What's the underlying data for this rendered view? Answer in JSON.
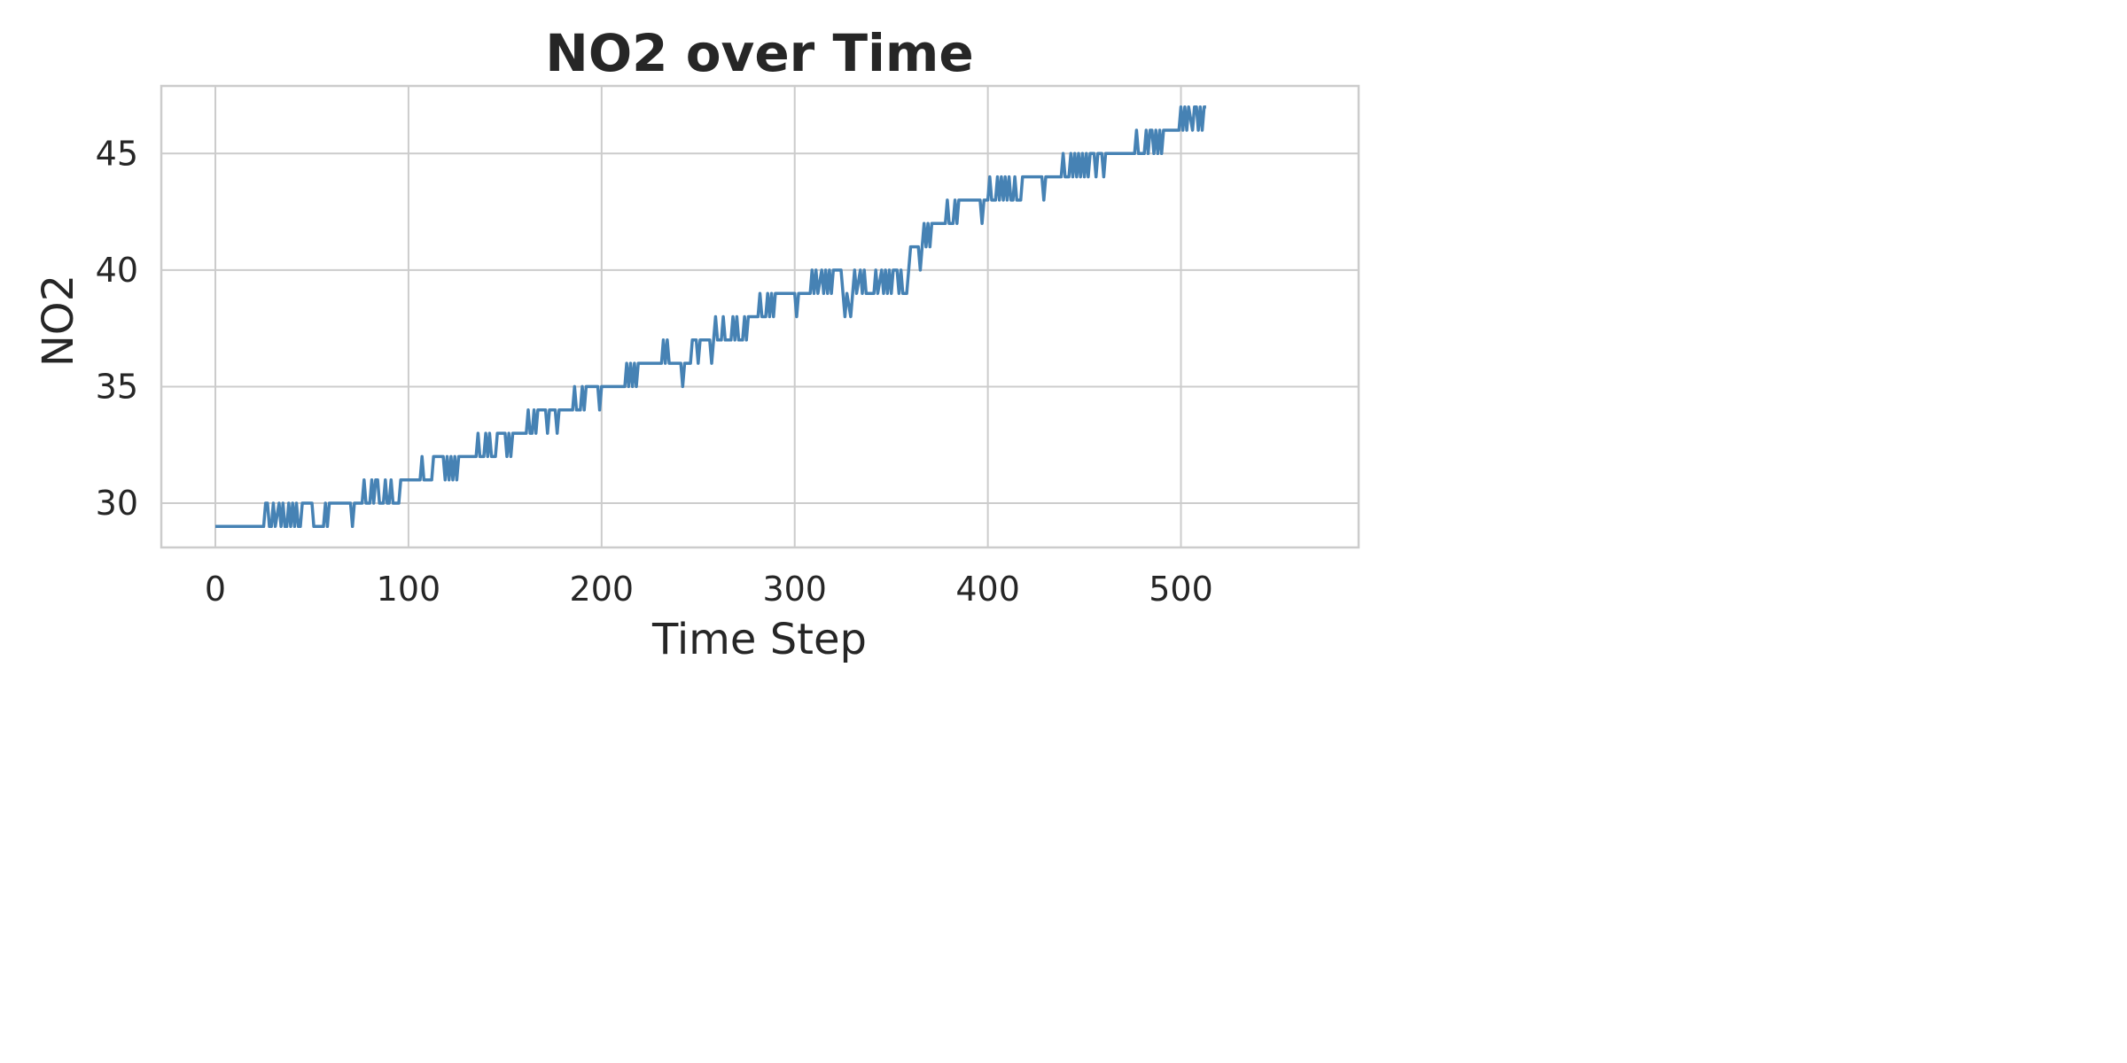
{
  "chart_data": {
    "type": "line",
    "title": "NO2 over Time",
    "xlabel": "Time Step",
    "ylabel": "NO2",
    "xlim": [
      -28,
      592
    ],
    "ylim": [
      28.1,
      47.9
    ],
    "xticks": [
      0,
      100,
      200,
      300,
      400,
      500
    ],
    "yticks": [
      30,
      35,
      40,
      45
    ],
    "grid": true,
    "line_color": "#4682b4",
    "series": [
      {
        "points": [
          [
            0,
            29
          ],
          [
            25,
            29
          ],
          [
            26,
            30
          ],
          [
            27,
            30
          ],
          [
            28,
            29
          ],
          [
            29,
            29
          ],
          [
            30,
            30
          ],
          [
            31,
            29
          ],
          [
            33,
            30
          ],
          [
            34,
            29
          ],
          [
            35,
            30
          ],
          [
            36,
            29
          ],
          [
            37,
            29
          ],
          [
            38,
            30
          ],
          [
            39,
            29
          ],
          [
            40,
            30
          ],
          [
            41,
            29
          ],
          [
            42,
            30
          ],
          [
            43,
            29
          ],
          [
            44,
            29
          ],
          [
            45,
            30
          ],
          [
            50,
            30
          ],
          [
            51,
            29
          ],
          [
            56,
            29
          ],
          [
            57,
            30
          ],
          [
            58,
            29
          ],
          [
            59,
            30
          ],
          [
            70,
            30
          ],
          [
            71,
            29
          ],
          [
            72,
            30
          ],
          [
            76,
            30
          ],
          [
            77,
            31
          ],
          [
            78,
            30
          ],
          [
            80,
            30
          ],
          [
            81,
            31
          ],
          [
            82,
            30
          ],
          [
            83,
            31
          ],
          [
            84,
            31
          ],
          [
            85,
            30
          ],
          [
            87,
            30
          ],
          [
            88,
            31
          ],
          [
            89,
            30
          ],
          [
            90,
            30
          ],
          [
            91,
            31
          ],
          [
            92,
            30
          ],
          [
            95,
            30
          ],
          [
            96,
            31
          ],
          [
            106,
            31
          ],
          [
            107,
            32
          ],
          [
            108,
            31
          ],
          [
            112,
            31
          ],
          [
            113,
            32
          ],
          [
            118,
            32
          ],
          [
            119,
            31
          ],
          [
            120,
            32
          ],
          [
            121,
            31
          ],
          [
            122,
            32
          ],
          [
            123,
            31
          ],
          [
            124,
            32
          ],
          [
            125,
            31
          ],
          [
            126,
            32
          ],
          [
            135,
            32
          ],
          [
            136,
            33
          ],
          [
            137,
            32
          ],
          [
            139,
            32
          ],
          [
            140,
            33
          ],
          [
            141,
            32
          ],
          [
            142,
            33
          ],
          [
            143,
            32
          ],
          [
            145,
            32
          ],
          [
            146,
            33
          ],
          [
            150,
            33
          ],
          [
            151,
            32
          ],
          [
            152,
            33
          ],
          [
            153,
            32
          ],
          [
            154,
            33
          ],
          [
            161,
            33
          ],
          [
            162,
            34
          ],
          [
            163,
            33
          ],
          [
            164,
            33
          ],
          [
            165,
            34
          ],
          [
            166,
            33
          ],
          [
            167,
            34
          ],
          [
            171,
            34
          ],
          [
            172,
            33
          ],
          [
            173,
            34
          ],
          [
            176,
            34
          ],
          [
            177,
            33
          ],
          [
            178,
            34
          ],
          [
            185,
            34
          ],
          [
            186,
            35
          ],
          [
            187,
            34
          ],
          [
            189,
            34
          ],
          [
            190,
            35
          ],
          [
            191,
            34
          ],
          [
            192,
            35
          ],
          [
            198,
            35
          ],
          [
            199,
            34
          ],
          [
            200,
            35
          ],
          [
            212,
            35
          ],
          [
            213,
            36
          ],
          [
            214,
            35
          ],
          [
            215,
            36
          ],
          [
            216,
            35
          ],
          [
            217,
            36
          ],
          [
            218,
            35
          ],
          [
            219,
            36
          ],
          [
            231,
            36
          ],
          [
            232,
            37
          ],
          [
            233,
            36
          ],
          [
            234,
            37
          ],
          [
            235,
            36
          ],
          [
            241,
            36
          ],
          [
            242,
            35
          ],
          [
            243,
            36
          ],
          [
            246,
            36
          ],
          [
            247,
            37
          ],
          [
            249,
            37
          ],
          [
            250,
            36
          ],
          [
            251,
            37
          ],
          [
            256,
            37
          ],
          [
            257,
            36
          ],
          [
            258,
            37
          ],
          [
            259,
            38
          ],
          [
            260,
            37
          ],
          [
            262,
            37
          ],
          [
            263,
            38
          ],
          [
            264,
            37
          ],
          [
            267,
            37
          ],
          [
            268,
            38
          ],
          [
            269,
            37
          ],
          [
            270,
            38
          ],
          [
            271,
            37
          ],
          [
            273,
            37
          ],
          [
            274,
            38
          ],
          [
            275,
            37
          ],
          [
            276,
            38
          ],
          [
            281,
            38
          ],
          [
            282,
            39
          ],
          [
            283,
            38
          ],
          [
            285,
            38
          ],
          [
            286,
            39
          ],
          [
            287,
            38
          ],
          [
            288,
            39
          ],
          [
            289,
            38
          ],
          [
            290,
            39
          ],
          [
            300,
            39
          ],
          [
            301,
            38
          ],
          [
            302,
            39
          ],
          [
            308,
            39
          ],
          [
            309,
            40
          ],
          [
            310,
            39
          ],
          [
            311,
            40
          ],
          [
            312,
            39
          ],
          [
            314,
            40
          ],
          [
            315,
            39
          ],
          [
            316,
            40
          ],
          [
            317,
            39
          ],
          [
            318,
            40
          ],
          [
            319,
            39
          ],
          [
            320,
            40
          ],
          [
            324,
            40
          ],
          [
            325,
            39
          ],
          [
            326,
            38
          ],
          [
            327,
            39
          ],
          [
            329,
            38
          ],
          [
            330,
            39
          ],
          [
            331,
            40
          ],
          [
            332,
            39
          ],
          [
            334,
            40
          ],
          [
            335,
            39
          ],
          [
            336,
            40
          ],
          [
            337,
            39
          ],
          [
            341,
            39
          ],
          [
            342,
            40
          ],
          [
            343,
            39
          ],
          [
            345,
            40
          ],
          [
            346,
            39
          ],
          [
            347,
            40
          ],
          [
            348,
            39
          ],
          [
            349,
            40
          ],
          [
            350,
            39
          ],
          [
            351,
            40
          ],
          [
            353,
            40
          ],
          [
            354,
            39
          ],
          [
            355,
            40
          ],
          [
            356,
            39
          ],
          [
            358,
            39
          ],
          [
            359,
            40
          ],
          [
            360,
            41
          ],
          [
            364,
            41
          ],
          [
            365,
            40
          ],
          [
            366,
            41
          ],
          [
            367,
            42
          ],
          [
            368,
            41
          ],
          [
            369,
            42
          ],
          [
            370,
            41
          ],
          [
            371,
            42
          ],
          [
            378,
            42
          ],
          [
            379,
            43
          ],
          [
            380,
            42
          ],
          [
            382,
            42
          ],
          [
            383,
            43
          ],
          [
            384,
            42
          ],
          [
            385,
            43
          ],
          [
            396,
            43
          ],
          [
            397,
            42
          ],
          [
            398,
            43
          ],
          [
            400,
            43
          ],
          [
            401,
            44
          ],
          [
            402,
            43
          ],
          [
            404,
            43
          ],
          [
            405,
            44
          ],
          [
            406,
            43
          ],
          [
            407,
            44
          ],
          [
            408,
            43
          ],
          [
            409,
            44
          ],
          [
            410,
            43
          ],
          [
            411,
            44
          ],
          [
            412,
            43
          ],
          [
            413,
            43
          ],
          [
            414,
            44
          ],
          [
            415,
            43
          ],
          [
            417,
            43
          ],
          [
            418,
            44
          ],
          [
            428,
            44
          ],
          [
            429,
            43
          ],
          [
            430,
            44
          ],
          [
            438,
            44
          ],
          [
            439,
            45
          ],
          [
            440,
            44
          ],
          [
            442,
            44
          ],
          [
            443,
            45
          ],
          [
            444,
            44
          ],
          [
            445,
            45
          ],
          [
            446,
            44
          ],
          [
            447,
            45
          ],
          [
            448,
            44
          ],
          [
            449,
            45
          ],
          [
            450,
            44
          ],
          [
            451,
            45
          ],
          [
            452,
            44
          ],
          [
            453,
            45
          ],
          [
            455,
            45
          ],
          [
            456,
            44
          ],
          [
            457,
            45
          ],
          [
            459,
            45
          ],
          [
            460,
            44
          ],
          [
            461,
            45
          ],
          [
            476,
            45
          ],
          [
            477,
            46
          ],
          [
            478,
            45
          ],
          [
            481,
            45
          ],
          [
            482,
            46
          ],
          [
            483,
            45
          ],
          [
            484,
            46
          ],
          [
            485,
            46
          ],
          [
            486,
            45
          ],
          [
            487,
            46
          ],
          [
            488,
            45
          ],
          [
            489,
            46
          ],
          [
            490,
            45
          ],
          [
            491,
            46
          ],
          [
            499,
            46
          ],
          [
            500,
            47
          ],
          [
            501,
            46
          ],
          [
            502,
            47
          ],
          [
            503,
            46
          ],
          [
            504,
            47
          ],
          [
            506,
            46
          ],
          [
            507,
            47
          ],
          [
            508,
            47
          ],
          [
            509,
            46
          ],
          [
            510,
            47
          ],
          [
            511,
            46
          ],
          [
            512,
            47
          ],
          [
            513,
            47
          ]
        ]
      }
    ]
  }
}
